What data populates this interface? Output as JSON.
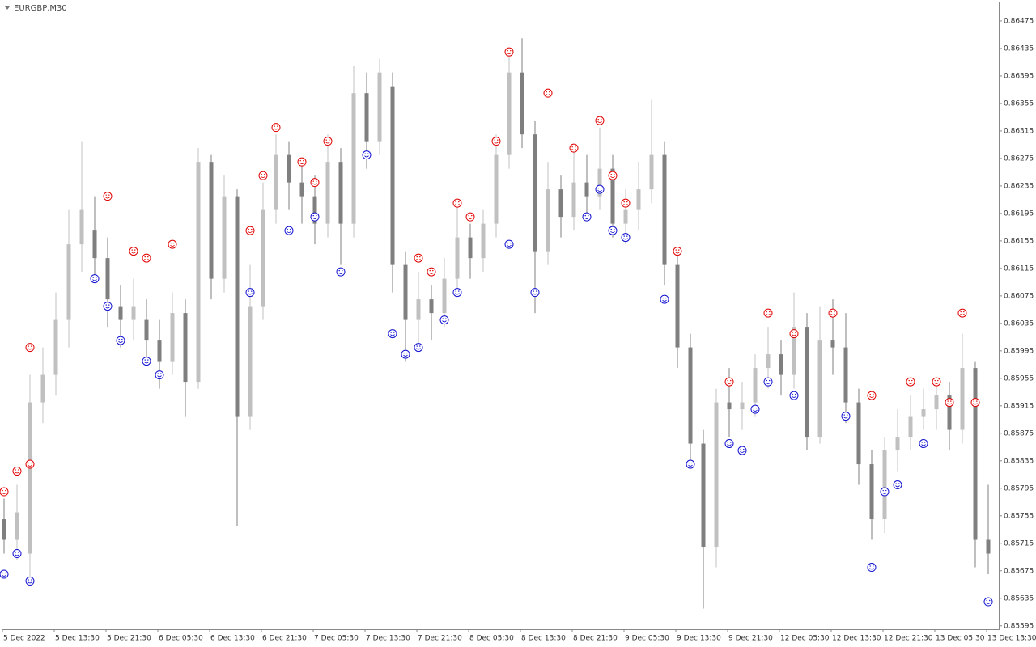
{
  "chart_data": {
    "type": "candlestick",
    "title": "EURGBP,M30",
    "categories": [
      "5 Dec 2022",
      null,
      null,
      null,
      "5 Dec 13:30",
      null,
      null,
      null,
      "5 Dec 21:30",
      null,
      null,
      null,
      "6 Dec 05:30",
      null,
      null,
      null,
      "6 Dec 13:30",
      null,
      null,
      null,
      "6 Dec 21:30",
      null,
      null,
      null,
      "7 Dec 05:30",
      null,
      null,
      null,
      "7 Dec 13:30",
      null,
      null,
      null,
      "7 Dec 21:30",
      null,
      null,
      null,
      "8 Dec 05:30",
      null,
      null,
      null,
      "8 Dec 13:30",
      null,
      null,
      null,
      "8 Dec 21:30",
      null,
      null,
      null,
      "9 Dec 05:30",
      null,
      null,
      null,
      "9 Dec 13:30",
      null,
      null,
      null,
      "9 Dec 21:30",
      null,
      null,
      null,
      "12 Dec 05:30",
      null,
      null,
      null,
      "12 Dec 13:30",
      null,
      null,
      null,
      "12 Dec 21:30",
      null,
      null,
      null,
      "13 Dec 05:30",
      null,
      null,
      null,
      "13 Dec 13:30"
    ],
    "open": [
      0.8575,
      0.8572,
      0.857,
      0.8592,
      0.8596,
      0.8604,
      0.8615,
      0.8617,
      0.8613,
      0.8606,
      0.8604,
      0.8604,
      0.8601,
      0.8598,
      0.8605,
      0.8595,
      0.8627,
      0.861,
      0.8622,
      0.859,
      0.8606,
      0.862,
      0.8628,
      0.8624,
      0.8622,
      0.8618,
      0.8627,
      0.8618,
      0.8637,
      0.863,
      0.8638,
      0.8612,
      0.8604,
      0.8607,
      0.8605,
      0.861,
      0.8616,
      0.8613,
      0.8618,
      0.8628,
      0.864,
      0.8631,
      0.8614,
      0.8623,
      0.8619,
      0.8624,
      0.8622,
      0.8626,
      0.8618,
      0.862,
      0.8623,
      0.8628,
      0.8612,
      0.86,
      0.8586,
      0.8571,
      0.8592,
      0.8591,
      0.8592,
      0.8597,
      0.8599,
      0.8596,
      0.8603,
      0.8587,
      0.8601,
      0.86,
      0.8592,
      0.8583,
      0.8575,
      0.8585,
      0.8587,
      0.859,
      0.8591,
      0.8593,
      0.8588,
      0.8597,
      0.8572
    ],
    "high": [
      0.8578,
      0.858,
      0.8596,
      0.86,
      0.8608,
      0.862,
      0.863,
      0.8622,
      0.8616,
      0.8609,
      0.861,
      0.8607,
      0.8604,
      0.8608,
      0.8607,
      0.8629,
      0.8628,
      0.8625,
      0.8623,
      0.8612,
      0.8624,
      0.8631,
      0.863,
      0.8627,
      0.8625,
      0.8631,
      0.8629,
      0.8641,
      0.864,
      0.8642,
      0.864,
      0.8614,
      0.8611,
      0.8609,
      0.8613,
      0.8621,
      0.8618,
      0.862,
      0.8631,
      0.8643,
      0.8645,
      0.8633,
      0.8627,
      0.8625,
      0.8629,
      0.8628,
      0.8632,
      0.8628,
      0.8623,
      0.8627,
      0.8636,
      0.863,
      0.8614,
      0.8602,
      0.8588,
      0.8594,
      0.8597,
      0.8595,
      0.8599,
      0.8603,
      0.8601,
      0.8608,
      0.8605,
      0.8606,
      0.8607,
      0.8605,
      0.8594,
      0.8585,
      0.8587,
      0.8591,
      0.8593,
      0.8594,
      0.8595,
      0.8595,
      0.8602,
      0.8598,
      0.858
    ],
    "low": [
      0.857,
      0.8569,
      0.8566,
      0.8589,
      0.8593,
      0.86,
      0.8611,
      0.861,
      0.8603,
      0.86,
      0.8601,
      0.8598,
      0.8594,
      0.8596,
      0.859,
      0.8594,
      0.8607,
      0.8608,
      0.8574,
      0.8588,
      0.8604,
      0.8618,
      0.862,
      0.8618,
      0.8615,
      0.8616,
      0.8612,
      0.8616,
      0.8626,
      0.8628,
      0.8608,
      0.8598,
      0.86,
      0.8601,
      0.8603,
      0.8608,
      0.861,
      0.8611,
      0.8616,
      0.8626,
      0.8629,
      0.8605,
      0.8612,
      0.8616,
      0.8617,
      0.8619,
      0.862,
      0.8616,
      0.8615,
      0.8617,
      0.8621,
      0.8609,
      0.8597,
      0.8583,
      0.8562,
      0.8568,
      0.8587,
      0.8588,
      0.859,
      0.8594,
      0.8593,
      0.8594,
      0.8585,
      0.8586,
      0.8596,
      0.8589,
      0.858,
      0.8572,
      0.8573,
      0.8582,
      0.8585,
      0.8588,
      0.8588,
      0.8585,
      0.8586,
      0.8568,
      0.8567
    ],
    "close": [
      0.8572,
      0.8576,
      0.8592,
      0.8596,
      0.8604,
      0.8615,
      0.862,
      0.8613,
      0.8607,
      0.8604,
      0.8606,
      0.8601,
      0.8598,
      0.8605,
      0.8595,
      0.8627,
      0.861,
      0.8622,
      0.859,
      0.8606,
      0.862,
      0.8628,
      0.8624,
      0.8622,
      0.8618,
      0.8627,
      0.8618,
      0.8637,
      0.863,
      0.864,
      0.8612,
      0.8604,
      0.8607,
      0.8605,
      0.861,
      0.8616,
      0.8613,
      0.8618,
      0.8628,
      0.864,
      0.8631,
      0.8614,
      0.8623,
      0.8619,
      0.8624,
      0.8622,
      0.8626,
      0.8618,
      0.862,
      0.8623,
      0.8628,
      0.8612,
      0.86,
      0.8586,
      0.8571,
      0.8592,
      0.8591,
      0.8592,
      0.8597,
      0.8599,
      0.8596,
      0.8603,
      0.8587,
      0.8601,
      0.86,
      0.8592,
      0.8583,
      0.8575,
      0.8585,
      0.8587,
      0.859,
      0.8591,
      0.8593,
      0.8588,
      0.8597,
      0.8572,
      0.857
    ],
    "up_color": "#c0c0c0",
    "down_color": "#7f7f7f",
    "markers": [
      {
        "color": "#e00000",
        "x": [
          0,
          1,
          2,
          2,
          8,
          10,
          11,
          13,
          19,
          20,
          21,
          23,
          24,
          25,
          32,
          33,
          35,
          36,
          38,
          39,
          42,
          44,
          46,
          47,
          48,
          52,
          56,
          59,
          61,
          64,
          67,
          70,
          72,
          73,
          74,
          75
        ],
        "values": [
          0.8579,
          0.8582,
          0.8583,
          0.86,
          0.8622,
          0.8614,
          0.8613,
          0.8615,
          0.8617,
          0.8625,
          0.8632,
          0.8627,
          0.8624,
          0.863,
          0.8613,
          0.8611,
          0.8621,
          0.8619,
          0.863,
          0.8643,
          0.8637,
          0.8629,
          0.8633,
          0.8625,
          0.8621,
          0.8614,
          0.8595,
          0.8605,
          0.8602,
          0.8605,
          0.8593,
          0.8595,
          0.8595,
          0.8592,
          0.8605,
          0.8592
        ]
      },
      {
        "color": "#1010d0",
        "x": [
          0,
          1,
          2,
          7,
          8,
          9,
          11,
          12,
          19,
          22,
          24,
          26,
          28,
          30,
          31,
          32,
          34,
          35,
          39,
          41,
          45,
          46,
          47,
          48,
          51,
          53,
          56,
          57,
          58,
          59,
          61,
          65,
          67,
          68,
          69,
          71,
          76
        ],
        "values": [
          0.8567,
          0.857,
          0.8566,
          0.861,
          0.8606,
          0.8601,
          0.8598,
          0.8596,
          0.8608,
          0.8617,
          0.8619,
          0.8611,
          0.8628,
          0.8602,
          0.8599,
          0.86,
          0.8604,
          0.8608,
          0.8615,
          0.8608,
          0.8619,
          0.8623,
          0.8617,
          0.8616,
          0.8607,
          0.8583,
          0.8586,
          0.8585,
          0.8591,
          0.8595,
          0.8593,
          0.859,
          0.8568,
          0.8579,
          0.858,
          0.8586,
          0.8563
        ]
      }
    ],
    "ylim": [
      0.8559,
      0.86502
    ],
    "yticks": [
      0.85595,
      0.85635,
      0.85675,
      0.85715,
      0.85755,
      0.85795,
      0.85835,
      0.85875,
      0.85915,
      0.85955,
      0.85995,
      0.86035,
      0.86075,
      0.86115,
      0.86155,
      0.86195,
      0.86235,
      0.86275,
      0.86315,
      0.86355,
      0.86395,
      0.86435,
      0.86475
    ]
  }
}
